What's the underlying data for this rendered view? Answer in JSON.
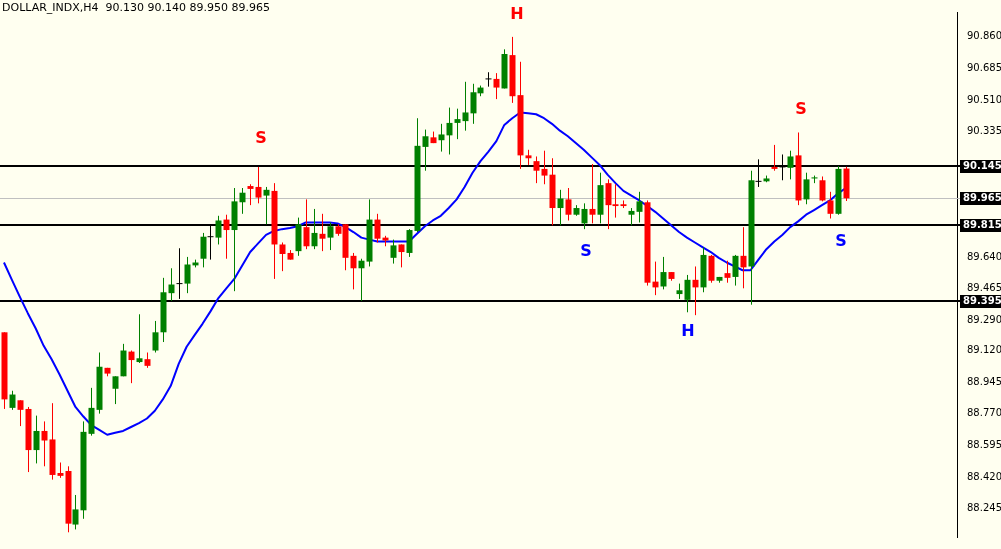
{
  "chart_data": {
    "type": "candlestick",
    "title": "DOLLAR_INDX,H4  90.130 90.140 89.950 89.965",
    "categories": [
      null,
      null,
      null,
      null,
      null,
      null,
      null,
      null,
      null,
      null,
      null,
      null,
      null,
      null,
      null,
      null,
      null,
      null,
      null,
      null,
      null,
      null,
      null,
      null,
      null,
      null,
      null,
      null,
      null,
      null,
      null,
      null,
      null,
      null,
      null,
      null,
      null,
      null,
      null,
      null,
      null,
      null,
      null,
      null,
      null,
      null,
      null,
      null,
      null,
      null,
      null,
      null,
      null,
      null,
      null,
      null,
      null,
      null,
      null,
      null,
      null,
      null,
      null,
      null,
      null,
      null,
      null,
      null,
      null,
      null,
      null,
      null,
      null,
      null,
      null,
      null,
      null,
      null,
      null,
      null,
      null,
      null,
      null,
      null,
      null,
      null,
      null,
      null,
      null,
      null,
      null,
      null,
      null,
      null,
      null,
      null,
      null,
      null,
      null,
      null,
      null,
      null,
      null,
      null,
      null,
      null,
      null
    ],
    "ohlc": [
      [
        89.222,
        89.222,
        88.797,
        88.85
      ],
      [
        88.803,
        88.898,
        88.792,
        88.877
      ],
      [
        88.845,
        88.845,
        88.702,
        88.792
      ],
      [
        88.797,
        88.808,
        88.447,
        88.569
      ],
      [
        88.569,
        88.76,
        88.495,
        88.675
      ],
      [
        88.675,
        88.728,
        88.479,
        88.622
      ],
      [
        88.628,
        88.829,
        88.405,
        88.431
      ],
      [
        88.442,
        88.5,
        88.415,
        88.426
      ],
      [
        88.453,
        88.479,
        88.113,
        88.161
      ],
      [
        88.156,
        88.32,
        88.129,
        88.24
      ],
      [
        88.235,
        88.728,
        88.188,
        88.67
      ],
      [
        88.659,
        88.914,
        88.649,
        88.803
      ],
      [
        88.792,
        89.11,
        88.771,
        89.031
      ],
      [
        89.025,
        89.025,
        88.978,
        88.993
      ],
      [
        88.909,
        88.978,
        88.824,
        88.978
      ],
      [
        88.978,
        89.158,
        88.978,
        89.121
      ],
      [
        89.115,
        89.121,
        88.94,
        89.068
      ],
      [
        89.057,
        89.322,
        89.052,
        89.078
      ],
      [
        89.073,
        89.11,
        89.025,
        89.036
      ],
      [
        89.121,
        89.285,
        89.11,
        89.222
      ],
      [
        89.222,
        89.524,
        89.168,
        89.444
      ],
      [
        89.439,
        89.577,
        89.396,
        89.487
      ],
      [
        89.492,
        89.688,
        89.407,
        89.492
      ],
      [
        89.492,
        89.64,
        89.439,
        89.598
      ],
      [
        89.593,
        89.625,
        89.582,
        89.609
      ],
      [
        89.63,
        89.773,
        89.582,
        89.752
      ],
      [
        89.752,
        89.821,
        89.625,
        89.752
      ],
      [
        89.747,
        89.868,
        89.709,
        89.842
      ],
      [
        89.847,
        89.874,
        89.63,
        89.789
      ],
      [
        89.789,
        90.022,
        89.45,
        89.948
      ],
      [
        89.943,
        90.022,
        89.879,
        89.996
      ],
      [
        90.033,
        90.043,
        89.927,
        90.017
      ],
      [
        90.028,
        90.139,
        89.937,
        89.969
      ],
      [
        89.98,
        90.028,
        89.821,
        90.012
      ],
      [
        90.006,
        90.049,
        89.518,
        89.709
      ],
      [
        89.709,
        89.72,
        89.561,
        89.656
      ],
      [
        89.662,
        89.678,
        89.625,
        89.625
      ],
      [
        89.672,
        89.858,
        89.646,
        89.821
      ],
      [
        89.805,
        89.959,
        89.683,
        89.699
      ],
      [
        89.699,
        89.906,
        89.683,
        89.773
      ],
      [
        89.768,
        89.879,
        89.672,
        89.741
      ],
      [
        89.747,
        89.831,
        89.678,
        89.81
      ],
      [
        89.81,
        89.821,
        89.757,
        89.768
      ],
      [
        89.821,
        89.821,
        89.566,
        89.635
      ],
      [
        89.646,
        89.662,
        89.46,
        89.577
      ],
      [
        89.577,
        89.63,
        89.396,
        89.619
      ],
      [
        89.614,
        89.959,
        89.587,
        89.847
      ],
      [
        89.847,
        89.879,
        89.72,
        89.741
      ],
      [
        89.747,
        89.757,
        89.699,
        89.731
      ],
      [
        89.635,
        89.736,
        89.603,
        89.704
      ],
      [
        89.709,
        89.709,
        89.582,
        89.667
      ],
      [
        89.662,
        89.794,
        89.64,
        89.789
      ],
      [
        89.784,
        90.409,
        89.778,
        90.256
      ],
      [
        90.25,
        90.346,
        90.118,
        90.309
      ],
      [
        90.303,
        90.335,
        90.271,
        90.271
      ],
      [
        90.287,
        90.378,
        90.224,
        90.319
      ],
      [
        90.314,
        90.468,
        90.208,
        90.383
      ],
      [
        90.383,
        90.462,
        90.293,
        90.404
      ],
      [
        90.393,
        90.611,
        90.34,
        90.441
      ],
      [
        90.436,
        90.6,
        90.378,
        90.553
      ],
      [
        90.547,
        90.59,
        90.531,
        90.579
      ],
      [
        90.627,
        90.664,
        90.584,
        90.627
      ],
      [
        90.627,
        90.659,
        90.515,
        90.579
      ],
      [
        90.574,
        90.791,
        90.574,
        90.765
      ],
      [
        90.759,
        90.86,
        90.494,
        90.531
      ],
      [
        90.537,
        90.722,
        90.128,
        90.203
      ],
      [
        90.203,
        90.234,
        90.15,
        90.187
      ],
      [
        90.171,
        90.197,
        90.049,
        90.118
      ],
      [
        90.128,
        90.229,
        90.043,
        90.091
      ],
      [
        90.096,
        90.187,
        89.815,
        89.911
      ],
      [
        89.911,
        90.012,
        89.815,
        89.964
      ],
      [
        89.959,
        90.022,
        89.842,
        89.874
      ],
      [
        89.874,
        89.927,
        89.868,
        89.911
      ],
      [
        89.826,
        89.937,
        89.794,
        89.906
      ],
      [
        89.906,
        90.155,
        89.826,
        89.874
      ],
      [
        89.874,
        90.107,
        89.826,
        90.038
      ],
      [
        90.049,
        90.07,
        89.794,
        89.927
      ],
      [
        89.932,
        90.043,
        89.858,
        89.922
      ],
      [
        89.932,
        89.953,
        89.911,
        89.922
      ],
      [
        89.874,
        89.911,
        89.815,
        89.895
      ],
      [
        89.89,
        90.001,
        89.831,
        89.948
      ],
      [
        89.943,
        89.953,
        89.481,
        89.497
      ],
      [
        89.503,
        89.614,
        89.428,
        89.471
      ],
      [
        89.476,
        89.64,
        89.46,
        89.556
      ],
      [
        89.556,
        89.556,
        89.508,
        89.518
      ],
      [
        89.434,
        89.492,
        89.407,
        89.455
      ],
      [
        89.402,
        89.54,
        89.333,
        89.513
      ],
      [
        89.513,
        89.587,
        89.317,
        89.471
      ],
      [
        89.471,
        89.693,
        89.444,
        89.651
      ],
      [
        89.646,
        89.651,
        89.497,
        89.508
      ],
      [
        89.508,
        89.529,
        89.497,
        89.529
      ],
      [
        89.55,
        89.619,
        89.497,
        89.524
      ],
      [
        89.529,
        89.651,
        89.481,
        89.646
      ],
      [
        89.646,
        89.805,
        89.466,
        89.582
      ],
      [
        89.587,
        90.118,
        89.375,
        90.065
      ],
      [
        90.059,
        90.181,
        90.028,
        90.059
      ],
      [
        90.059,
        90.091,
        90.054,
        90.075
      ],
      [
        90.139,
        90.261,
        90.118,
        90.128
      ],
      [
        90.139,
        90.208,
        90.065,
        90.139
      ],
      [
        90.134,
        90.229,
        90.07,
        90.197
      ],
      [
        90.203,
        90.33,
        89.927,
        89.953
      ],
      [
        89.959,
        90.107,
        89.932,
        90.07
      ],
      [
        90.075,
        90.091,
        90.049,
        90.081
      ],
      [
        90.065,
        90.086,
        89.948,
        89.953
      ],
      [
        89.953,
        90.001,
        89.853,
        89.879
      ],
      [
        89.879,
        90.144,
        89.874,
        90.128
      ],
      [
        90.13,
        90.14,
        89.95,
        89.965
      ]
    ],
    "colors": [
      "#ff0000",
      "#008000",
      "#ff0000",
      "#ff0000",
      "#008000",
      "#ff0000",
      "#ff0000",
      "#ff0000",
      "#ff0000",
      "#008000",
      "#008000",
      "#008000",
      "#008000",
      "#ff0000",
      "#008000",
      "#008000",
      "#ff0000",
      "#008000",
      "#ff0000",
      "#008000",
      "#008000",
      "#008000",
      "#000000",
      "#008000",
      "#008000",
      "#008000",
      "#000000",
      "#008000",
      "#ff0000",
      "#008000",
      "#008000",
      "#ff0000",
      "#ff0000",
      "#008000",
      "#ff0000",
      "#ff0000",
      "#ff0000",
      "#008000",
      "#ff0000",
      "#008000",
      "#ff0000",
      "#008000",
      "#ff0000",
      "#ff0000",
      "#ff0000",
      "#008000",
      "#008000",
      "#ff0000",
      "#ff0000",
      "#008000",
      "#ff0000",
      "#008000",
      "#008000",
      "#008000",
      "#ff0000",
      "#008000",
      "#008000",
      "#008000",
      "#008000",
      "#008000",
      "#008000",
      "#000000",
      "#ff0000",
      "#008000",
      "#ff0000",
      "#ff0000",
      "#ff0000",
      "#ff0000",
      "#ff0000",
      "#ff0000",
      "#008000",
      "#ff0000",
      "#008000",
      "#008000",
      "#ff0000",
      "#008000",
      "#ff0000",
      "#ff0000",
      "#ff0000",
      "#008000",
      "#008000",
      "#ff0000",
      "#ff0000",
      "#008000",
      "#ff0000",
      "#008000",
      "#008000",
      "#ff0000",
      "#008000",
      "#ff0000",
      "#008000",
      "#ff0000",
      "#008000",
      "#ff0000",
      "#008000",
      "#000000",
      "#008000",
      "#ff0000",
      "#000000",
      "#008000",
      "#ff0000",
      "#008000",
      "#008000",
      "#ff0000",
      "#ff0000",
      "#008000",
      "#ff0000"
    ],
    "series": [
      {
        "type": "line",
        "color": "#0000ff",
        "values": [
          89.609,
          89.513,
          89.418,
          89.328,
          89.243,
          89.147,
          89.073,
          88.988,
          88.898,
          88.808,
          88.755,
          88.707,
          88.681,
          88.654,
          88.665,
          88.675,
          88.697,
          88.718,
          88.744,
          88.787,
          88.85,
          88.925,
          89.047,
          89.142,
          89.206,
          89.269,
          89.338,
          89.412,
          89.466,
          89.518,
          89.593,
          89.667,
          89.715,
          89.762,
          89.784,
          89.794,
          89.8,
          89.81,
          89.831,
          89.831,
          89.831,
          89.831,
          89.826,
          89.805,
          89.778,
          89.747,
          89.736,
          89.725,
          89.725,
          89.725,
          89.725,
          89.725,
          89.768,
          89.81,
          89.842,
          89.868,
          89.911,
          89.959,
          90.028,
          90.107,
          90.171,
          90.224,
          90.282,
          90.372,
          90.409,
          90.441,
          90.436,
          90.431,
          90.409,
          90.378,
          90.34,
          90.309,
          90.271,
          90.234,
          90.192,
          90.15,
          90.096,
          90.049,
          90.006,
          89.98,
          89.953,
          89.922,
          89.89,
          89.853,
          89.815,
          89.778,
          89.747,
          89.72,
          89.693,
          89.667,
          89.635,
          89.609,
          89.587,
          89.566,
          89.566,
          89.625,
          89.683,
          89.725,
          89.762,
          89.805,
          89.837,
          89.874,
          89.9,
          89.927,
          89.953,
          89.991,
          90.022
        ]
      }
    ],
    "ylim": [
      88.087,
      90.998
    ],
    "yticks": [
      {
        "value": 90.86,
        "label": "90.860"
      },
      {
        "value": 90.685,
        "label": "90.685"
      },
      {
        "value": 90.51,
        "label": "90.510"
      },
      {
        "value": 90.335,
        "label": "90.335"
      },
      {
        "value": 89.64,
        "label": "89.640"
      },
      {
        "value": 89.465,
        "label": "89.465"
      },
      {
        "value": 89.29,
        "label": "89.290"
      },
      {
        "value": 89.12,
        "label": "89.120"
      },
      {
        "value": 88.945,
        "label": "88.945"
      },
      {
        "value": 88.77,
        "label": "88.770"
      },
      {
        "value": 88.595,
        "label": "88.595"
      },
      {
        "value": 88.42,
        "label": "88.420"
      },
      {
        "value": 88.245,
        "label": "88.245"
      }
    ],
    "ref_lines": [
      {
        "axis": "y",
        "value": 90.145,
        "label": "90.145",
        "color": "#000000"
      },
      {
        "axis": "y",
        "value": 89.965,
        "label": "89.965",
        "color": "#c0c0c0"
      },
      {
        "axis": "y",
        "value": 89.815,
        "label": "89.815",
        "color": "#000000"
      },
      {
        "axis": "y",
        "value": 89.395,
        "label": "89.395",
        "color": "#000000"
      }
    ],
    "annotations": [
      "S",
      "H",
      "S",
      "H",
      "S",
      "S"
    ],
    "tick_labels": "y"
  }
}
